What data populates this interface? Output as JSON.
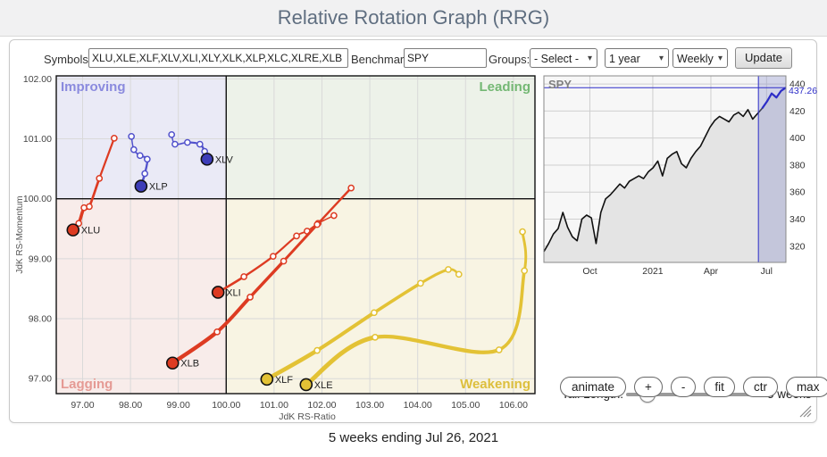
{
  "header": {
    "title": "Relative Rotation Graph (RRG)"
  },
  "controls": {
    "symbols_label": "Symbols:",
    "symbols_value": "XLU,XLE,XLF,XLV,XLI,XLY,XLK,XLP,XLC,XLRE,XLB",
    "benchmark_label": "Benchmark:",
    "benchmark_value": "SPY",
    "groups_label": "Groups:",
    "groups_value": "- Select -",
    "period_value": "1 year",
    "frequency_value": "Weekly",
    "update_label": "Update"
  },
  "toolbar": {
    "buttons": [
      "animate",
      "+",
      "-",
      "fit",
      "ctr",
      "max"
    ]
  },
  "tail": {
    "label": "Tail Length:",
    "value_label": "5 weeks",
    "percent": 15
  },
  "footer": {
    "caption": "5 weeks ending Jul 26, 2021"
  },
  "chart_data": [
    {
      "id": "rrg",
      "type": "scatter",
      "xlabel": "JdK RS-Ratio",
      "ylabel": "JdK RS-Momentum",
      "xlim": [
        96.45,
        106.45
      ],
      "ylim": [
        96.75,
        102.05
      ],
      "xticks": [
        97,
        98,
        99,
        100,
        101,
        102,
        103,
        104,
        105,
        106
      ],
      "yticks": [
        97,
        98,
        99,
        100,
        101,
        102
      ],
      "grid": true,
      "quadrants": {
        "improving": {
          "label": "Improving",
          "color": "#8a8ade",
          "bg": "#eaeaf6"
        },
        "leading": {
          "label": "Leading",
          "color": "#74b874",
          "bg": "#edf2e9"
        },
        "lagging": {
          "label": "Lagging",
          "color": "#e59a94",
          "bg": "#f8ecea"
        },
        "weakening": {
          "label": "Weakening",
          "color": "#ddbf3c",
          "bg": "#f8f4e3"
        }
      },
      "series": [
        {
          "name": "XLF",
          "color": "#e3c235",
          "width": 4.6,
          "points": [
            [
              104.86,
              98.74
            ],
            [
              104.64,
              98.82
            ],
            [
              104.06,
              98.59
            ],
            [
              103.09,
              98.1
            ],
            [
              101.9,
              97.47
            ],
            [
              100.85,
              96.99
            ]
          ]
        },
        {
          "name": "XLE",
          "color": "#e3c235",
          "width": 5,
          "points": [
            [
              106.19,
              99.45
            ],
            [
              106.23,
              98.8
            ],
            [
              105.7,
              97.48
            ],
            [
              103.11,
              97.69
            ],
            [
              101.67,
              96.9
            ]
          ]
        },
        {
          "name": "XLI",
          "color": "#dd3b22",
          "width": 2.6,
          "points": [
            [
              102.25,
              99.72
            ],
            [
              101.92,
              99.59
            ],
            [
              101.69,
              99.46
            ],
            [
              101.47,
              99.38
            ],
            [
              100.98,
              99.04
            ],
            [
              100.37,
              98.7
            ],
            [
              99.83,
              98.44
            ]
          ]
        },
        {
          "name": "XLB",
          "color": "#dd3b22",
          "width": 4.4,
          "points": [
            [
              102.61,
              100.18
            ],
            [
              101.9,
              99.57
            ],
            [
              101.2,
              98.96
            ],
            [
              100.5,
              98.36
            ],
            [
              99.81,
              97.78
            ],
            [
              98.88,
              97.26
            ]
          ]
        },
        {
          "name": "XLU",
          "color": "#dd3b22",
          "width": 4,
          "points": [
            [
              97.66,
              101.01
            ],
            [
              97.35,
              100.34
            ],
            [
              97.14,
              99.87
            ],
            [
              97.03,
              99.85
            ],
            [
              96.92,
              99.59
            ],
            [
              96.8,
              99.48
            ]
          ]
        },
        {
          "name": "XLP",
          "color": "#5252cc",
          "width": 2.6,
          "marker_fill": "#3d3db8",
          "points": [
            [
              98.02,
              101.04
            ],
            [
              98.07,
              100.82
            ],
            [
              98.2,
              100.72
            ],
            [
              98.35,
              100.66
            ],
            [
              98.3,
              100.42
            ],
            [
              98.22,
              100.21
            ]
          ]
        },
        {
          "name": "XLV",
          "color": "#5252cc",
          "width": 2.6,
          "marker_fill": "#3d3db8",
          "points": [
            [
              98.86,
              101.07
            ],
            [
              98.93,
              100.91
            ],
            [
              99.19,
              100.94
            ],
            [
              99.45,
              100.91
            ],
            [
              99.55,
              100.79
            ],
            [
              99.6,
              100.66
            ]
          ]
        }
      ]
    },
    {
      "id": "spy",
      "type": "area",
      "symbol": "SPY",
      "last_price_label": "437.26",
      "last_price": 437.26,
      "ylim": [
        308,
        446
      ],
      "yticks": [
        320,
        340,
        360,
        380,
        400,
        420,
        440
      ],
      "xtick_labels": [
        "Oct",
        "2021",
        "Apr",
        "Jul"
      ],
      "xtick_positions": [
        0.19,
        0.45,
        0.69,
        0.92
      ],
      "highlight_weeks": 5,
      "line_color": "#111111",
      "area_color": "#e4e4e4",
      "highlight_line_color": "#2d2dc8",
      "band_fill": "#8a90cc",
      "values": [
        316,
        322,
        329,
        333,
        345,
        334,
        327,
        324,
        340,
        343,
        341,
        322,
        345,
        355,
        358,
        362,
        366,
        363,
        368,
        370,
        372,
        370,
        375,
        378,
        383,
        372,
        385,
        388,
        390,
        381,
        378,
        385,
        390,
        394,
        401,
        408,
        413,
        416,
        414,
        412,
        417,
        419,
        416,
        421,
        414,
        418,
        422,
        427,
        433,
        430,
        435,
        437.26
      ]
    }
  ]
}
